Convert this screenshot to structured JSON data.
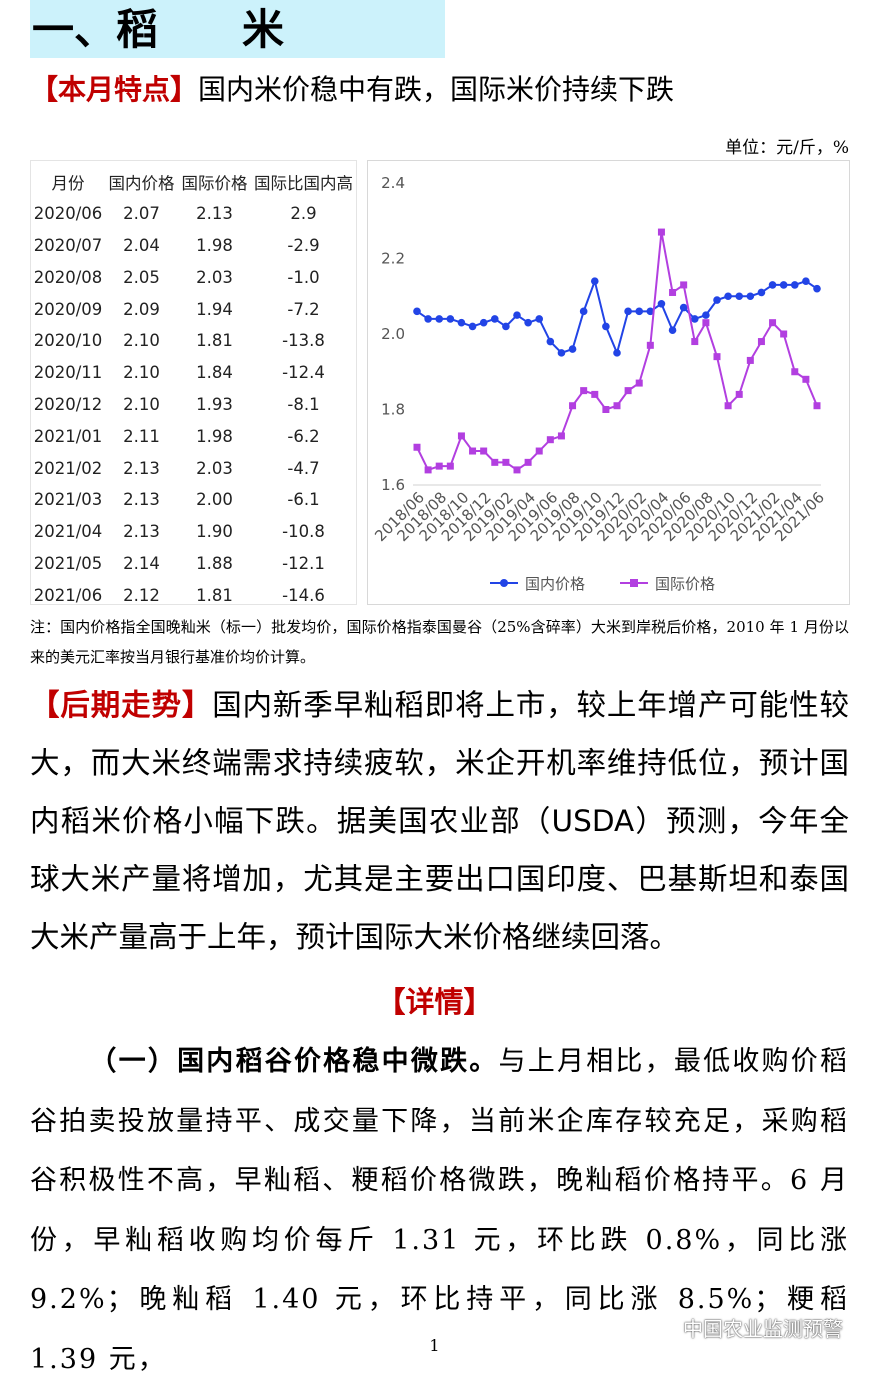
{
  "header": {
    "title": "一、稻　　米"
  },
  "highlight": {
    "label": "【本月特点】",
    "text": "国内米价稳中有跌，国际米价持续下跌"
  },
  "unit": "单位：元/斤，%",
  "table": {
    "columns": [
      "月份",
      "国内价格",
      "国际价格",
      "国际比国内高"
    ],
    "rows": [
      [
        "2020/06",
        "2.07",
        "2.13",
        "2.9"
      ],
      [
        "2020/07",
        "2.04",
        "1.98",
        "-2.9"
      ],
      [
        "2020/08",
        "2.05",
        "2.03",
        "-1.0"
      ],
      [
        "2020/09",
        "2.09",
        "1.94",
        "-7.2"
      ],
      [
        "2020/10",
        "2.10",
        "1.81",
        "-13.8"
      ],
      [
        "2020/11",
        "2.10",
        "1.84",
        "-12.4"
      ],
      [
        "2020/12",
        "2.10",
        "1.93",
        "-8.1"
      ],
      [
        "2021/01",
        "2.11",
        "1.98",
        "-6.2"
      ],
      [
        "2021/02",
        "2.13",
        "2.03",
        "-4.7"
      ],
      [
        "2021/03",
        "2.13",
        "2.00",
        "-6.1"
      ],
      [
        "2021/04",
        "2.13",
        "1.90",
        "-10.8"
      ],
      [
        "2021/05",
        "2.14",
        "1.88",
        "-12.1"
      ],
      [
        "2021/06",
        "2.12",
        "1.81",
        "-14.6"
      ]
    ]
  },
  "chart_data": {
    "type": "line",
    "categories": [
      "2018/06",
      null,
      "2018/08",
      null,
      "2018/10",
      null,
      "2018/12",
      null,
      "2019/02",
      null,
      "2019/04",
      null,
      "2019/06",
      null,
      "2019/08",
      null,
      "2019/10",
      null,
      "2019/12",
      null,
      "2020/02",
      null,
      "2020/04",
      null,
      "2020/06",
      null,
      "2020/08",
      null,
      "2020/10",
      null,
      "2020/12",
      null,
      "2021/02",
      null,
      "2021/04",
      null,
      "2021/06"
    ],
    "series": [
      {
        "name": "国内价格",
        "color": "#2244e6",
        "marker": "circle",
        "values": [
          2.06,
          2.04,
          2.04,
          2.04,
          2.03,
          2.02,
          2.03,
          2.04,
          2.02,
          2.05,
          2.03,
          2.04,
          1.98,
          1.95,
          1.96,
          2.06,
          2.14,
          2.02,
          1.95,
          2.06,
          2.06,
          2.06,
          2.08,
          2.01,
          2.07,
          2.04,
          2.05,
          2.09,
          2.1,
          2.1,
          2.1,
          2.11,
          2.13,
          2.13,
          2.13,
          2.14,
          2.12
        ]
      },
      {
        "name": "国际价格",
        "color": "#b23fe0",
        "marker": "square",
        "values": [
          1.7,
          1.64,
          1.65,
          1.65,
          1.73,
          1.69,
          1.69,
          1.66,
          1.66,
          1.64,
          1.66,
          1.69,
          1.72,
          1.73,
          1.81,
          1.85,
          1.84,
          1.8,
          1.81,
          1.85,
          1.87,
          1.97,
          2.27,
          2.11,
          2.13,
          1.98,
          2.03,
          1.94,
          1.81,
          1.84,
          1.93,
          1.98,
          2.03,
          2.0,
          1.9,
          1.88,
          1.81
        ]
      }
    ],
    "ylim": [
      1.6,
      2.4
    ],
    "yticks": [
      1.6,
      1.8,
      {
        "value": 2,
        "label": "2.0"
      },
      2.2,
      2.4
    ],
    "grid": false
  },
  "note": "注：国内价格指全国晚籼米（标一）批发均价，国际价格指泰国曼谷（25%含碎率）大米到岸税后价格，2010 年 1 月份以来的美元汇率按当月银行基准价均价计算。",
  "outlook": {
    "label": "【后期走势】",
    "text": "国内新季早籼稻即将上市，较上年增产可能性较大，而大米终端需求持续疲软，米企开机率维持低位，预计国内稻米价格小幅下跌。据美国农业部（USDA）预测，今年全球大米产量将增加，尤其是主要出口国印度、巴基斯坦和泰国大米产量高于上年，预计国际大米价格继续回落。"
  },
  "details": {
    "heading": "【详情】",
    "paragraphs": [
      {
        "lead": "（一）国内稻谷价格稳中微跌。",
        "text": "与上月相比，最低收购价稻谷拍卖投放量持平、成交量下降，当前米企库存较充足，采购稻谷积极性不高，早籼稻、粳稻价格微跌，晚籼稻价格持平。6 月份，早籼稻收购均价每斤 1.31 元，环比跌 0.8%，同比涨 9.2%；晚籼稻 1.40 元，环比持平，同比涨 8.5%；粳稻 1.39 元，"
      }
    ]
  },
  "page_number": "1",
  "watermark": "中国农业监测预警"
}
